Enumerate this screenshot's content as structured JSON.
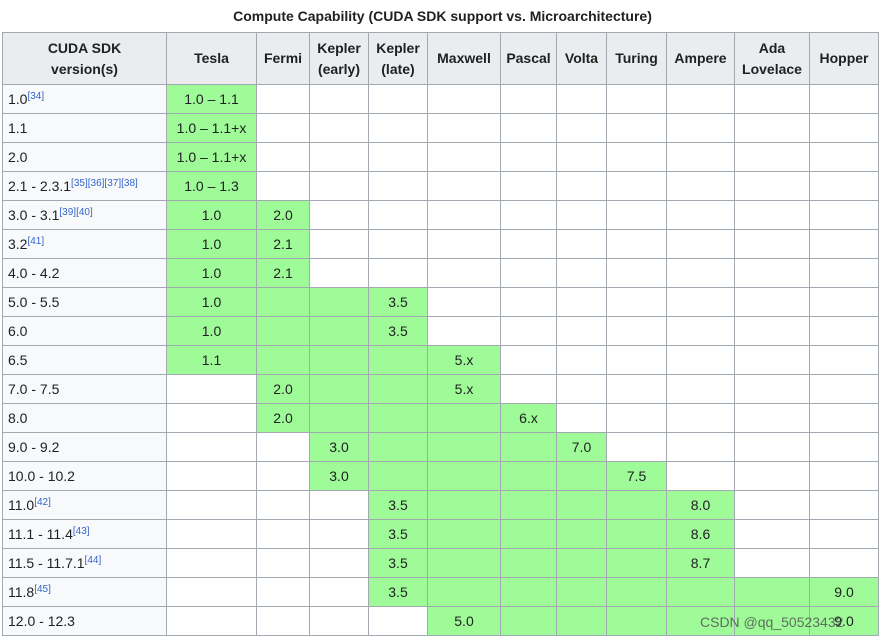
{
  "caption": "Compute Capability (CUDA SDK support vs. Microarchitecture)",
  "headers": [
    [
      "CUDA SDK",
      "version(s)"
    ],
    [
      "Tesla"
    ],
    [
      "Fermi"
    ],
    [
      "Kepler",
      "(early)"
    ],
    [
      "Kepler",
      "(late)"
    ],
    [
      "Maxwell"
    ],
    [
      "Pascal"
    ],
    [
      "Volta"
    ],
    [
      "Turing"
    ],
    [
      "Ampere"
    ],
    [
      "Ada",
      "Lovelace"
    ],
    [
      "Hopper"
    ]
  ],
  "rows": [
    {
      "version": "1.0",
      "refs": [
        "[34]"
      ],
      "cells": [
        {
          "text": "1.0 – 1.1",
          "green": true
        },
        {
          "text": "",
          "green": false
        },
        {
          "text": "",
          "green": false
        },
        {
          "text": "",
          "green": false
        },
        {
          "text": "",
          "green": false
        },
        {
          "text": "",
          "green": false
        },
        {
          "text": "",
          "green": false
        },
        {
          "text": "",
          "green": false
        },
        {
          "text": "",
          "green": false
        },
        {
          "text": "",
          "green": false
        },
        {
          "text": "",
          "green": false
        }
      ]
    },
    {
      "version": "1.1",
      "refs": [],
      "cells": [
        {
          "text": "1.0 – 1.1+x",
          "green": true
        },
        {
          "text": "",
          "green": false
        },
        {
          "text": "",
          "green": false
        },
        {
          "text": "",
          "green": false
        },
        {
          "text": "",
          "green": false
        },
        {
          "text": "",
          "green": false
        },
        {
          "text": "",
          "green": false
        },
        {
          "text": "",
          "green": false
        },
        {
          "text": "",
          "green": false
        },
        {
          "text": "",
          "green": false
        },
        {
          "text": "",
          "green": false
        }
      ]
    },
    {
      "version": "2.0",
      "refs": [],
      "cells": [
        {
          "text": "1.0 – 1.1+x",
          "green": true
        },
        {
          "text": "",
          "green": false
        },
        {
          "text": "",
          "green": false
        },
        {
          "text": "",
          "green": false
        },
        {
          "text": "",
          "green": false
        },
        {
          "text": "",
          "green": false
        },
        {
          "text": "",
          "green": false
        },
        {
          "text": "",
          "green": false
        },
        {
          "text": "",
          "green": false
        },
        {
          "text": "",
          "green": false
        },
        {
          "text": "",
          "green": false
        }
      ]
    },
    {
      "version": "2.1 - 2.3.1",
      "refs": [
        "[35]",
        "[36]",
        "[37]",
        "[38]"
      ],
      "cells": [
        {
          "text": "1.0 – 1.3",
          "green": true
        },
        {
          "text": "",
          "green": false
        },
        {
          "text": "",
          "green": false
        },
        {
          "text": "",
          "green": false
        },
        {
          "text": "",
          "green": false
        },
        {
          "text": "",
          "green": false
        },
        {
          "text": "",
          "green": false
        },
        {
          "text": "",
          "green": false
        },
        {
          "text": "",
          "green": false
        },
        {
          "text": "",
          "green": false
        },
        {
          "text": "",
          "green": false
        }
      ]
    },
    {
      "version": "3.0 - 3.1",
      "refs": [
        "[39]",
        "[40]"
      ],
      "cells": [
        {
          "text": "1.0",
          "green": true
        },
        {
          "text": "2.0",
          "green": true
        },
        {
          "text": "",
          "green": false
        },
        {
          "text": "",
          "green": false
        },
        {
          "text": "",
          "green": false
        },
        {
          "text": "",
          "green": false
        },
        {
          "text": "",
          "green": false
        },
        {
          "text": "",
          "green": false
        },
        {
          "text": "",
          "green": false
        },
        {
          "text": "",
          "green": false
        },
        {
          "text": "",
          "green": false
        }
      ]
    },
    {
      "version": "3.2",
      "refs": [
        "[41]"
      ],
      "cells": [
        {
          "text": "1.0",
          "green": true
        },
        {
          "text": "2.1",
          "green": true
        },
        {
          "text": "",
          "green": false
        },
        {
          "text": "",
          "green": false
        },
        {
          "text": "",
          "green": false
        },
        {
          "text": "",
          "green": false
        },
        {
          "text": "",
          "green": false
        },
        {
          "text": "",
          "green": false
        },
        {
          "text": "",
          "green": false
        },
        {
          "text": "",
          "green": false
        },
        {
          "text": "",
          "green": false
        }
      ]
    },
    {
      "version": "4.0 - 4.2",
      "refs": [],
      "cells": [
        {
          "text": "1.0",
          "green": true
        },
        {
          "text": "2.1",
          "green": true
        },
        {
          "text": "",
          "green": false
        },
        {
          "text": "",
          "green": false
        },
        {
          "text": "",
          "green": false
        },
        {
          "text": "",
          "green": false
        },
        {
          "text": "",
          "green": false
        },
        {
          "text": "",
          "green": false
        },
        {
          "text": "",
          "green": false
        },
        {
          "text": "",
          "green": false
        },
        {
          "text": "",
          "green": false
        }
      ]
    },
    {
      "version": "5.0 - 5.5",
      "refs": [],
      "cells": [
        {
          "text": "1.0",
          "green": true
        },
        {
          "text": "",
          "green": true
        },
        {
          "text": "",
          "green": true
        },
        {
          "text": "3.5",
          "green": true
        },
        {
          "text": "",
          "green": false
        },
        {
          "text": "",
          "green": false
        },
        {
          "text": "",
          "green": false
        },
        {
          "text": "",
          "green": false
        },
        {
          "text": "",
          "green": false
        },
        {
          "text": "",
          "green": false
        },
        {
          "text": "",
          "green": false
        }
      ]
    },
    {
      "version": "6.0",
      "refs": [],
      "cells": [
        {
          "text": "1.0",
          "green": true
        },
        {
          "text": "",
          "green": true
        },
        {
          "text": "",
          "green": true
        },
        {
          "text": "3.5",
          "green": true
        },
        {
          "text": "",
          "green": false
        },
        {
          "text": "",
          "green": false
        },
        {
          "text": "",
          "green": false
        },
        {
          "text": "",
          "green": false
        },
        {
          "text": "",
          "green": false
        },
        {
          "text": "",
          "green": false
        },
        {
          "text": "",
          "green": false
        }
      ]
    },
    {
      "version": "6.5",
      "refs": [],
      "cells": [
        {
          "text": "1.1",
          "green": true
        },
        {
          "text": "",
          "green": true
        },
        {
          "text": "",
          "green": true
        },
        {
          "text": "",
          "green": true
        },
        {
          "text": "5.x",
          "green": true
        },
        {
          "text": "",
          "green": false
        },
        {
          "text": "",
          "green": false
        },
        {
          "text": "",
          "green": false
        },
        {
          "text": "",
          "green": false
        },
        {
          "text": "",
          "green": false
        },
        {
          "text": "",
          "green": false
        }
      ]
    },
    {
      "version": "7.0 - 7.5",
      "refs": [],
      "cells": [
        {
          "text": "",
          "green": false
        },
        {
          "text": "2.0",
          "green": true
        },
        {
          "text": "",
          "green": true
        },
        {
          "text": "",
          "green": true
        },
        {
          "text": "5.x",
          "green": true
        },
        {
          "text": "",
          "green": false
        },
        {
          "text": "",
          "green": false
        },
        {
          "text": "",
          "green": false
        },
        {
          "text": "",
          "green": false
        },
        {
          "text": "",
          "green": false
        },
        {
          "text": "",
          "green": false
        }
      ]
    },
    {
      "version": "8.0",
      "refs": [],
      "cells": [
        {
          "text": "",
          "green": false
        },
        {
          "text": "2.0",
          "green": true
        },
        {
          "text": "",
          "green": true
        },
        {
          "text": "",
          "green": true
        },
        {
          "text": "",
          "green": true
        },
        {
          "text": "6.x",
          "green": true
        },
        {
          "text": "",
          "green": false
        },
        {
          "text": "",
          "green": false
        },
        {
          "text": "",
          "green": false
        },
        {
          "text": "",
          "green": false
        },
        {
          "text": "",
          "green": false
        }
      ]
    },
    {
      "version": "9.0 - 9.2",
      "refs": [],
      "cells": [
        {
          "text": "",
          "green": false
        },
        {
          "text": "",
          "green": false
        },
        {
          "text": "3.0",
          "green": true
        },
        {
          "text": "",
          "green": true
        },
        {
          "text": "",
          "green": true
        },
        {
          "text": "",
          "green": true
        },
        {
          "text": "7.0",
          "green": true
        },
        {
          "text": "",
          "green": false
        },
        {
          "text": "",
          "green": false
        },
        {
          "text": "",
          "green": false
        },
        {
          "text": "",
          "green": false
        }
      ]
    },
    {
      "version": "10.0 - 10.2",
      "refs": [],
      "cells": [
        {
          "text": "",
          "green": false
        },
        {
          "text": "",
          "green": false
        },
        {
          "text": "3.0",
          "green": true
        },
        {
          "text": "",
          "green": true
        },
        {
          "text": "",
          "green": true
        },
        {
          "text": "",
          "green": true
        },
        {
          "text": "",
          "green": true
        },
        {
          "text": "7.5",
          "green": true
        },
        {
          "text": "",
          "green": false
        },
        {
          "text": "",
          "green": false
        },
        {
          "text": "",
          "green": false
        }
      ]
    },
    {
      "version": "11.0",
      "refs": [
        "[42]"
      ],
      "cells": [
        {
          "text": "",
          "green": false
        },
        {
          "text": "",
          "green": false
        },
        {
          "text": "",
          "green": false
        },
        {
          "text": "3.5",
          "green": true
        },
        {
          "text": "",
          "green": true
        },
        {
          "text": "",
          "green": true
        },
        {
          "text": "",
          "green": true
        },
        {
          "text": "",
          "green": true
        },
        {
          "text": "8.0",
          "green": true
        },
        {
          "text": "",
          "green": false
        },
        {
          "text": "",
          "green": false
        }
      ]
    },
    {
      "version": "11.1 - 11.4",
      "refs": [
        "[43]"
      ],
      "cells": [
        {
          "text": "",
          "green": false
        },
        {
          "text": "",
          "green": false
        },
        {
          "text": "",
          "green": false
        },
        {
          "text": "3.5",
          "green": true
        },
        {
          "text": "",
          "green": true
        },
        {
          "text": "",
          "green": true
        },
        {
          "text": "",
          "green": true
        },
        {
          "text": "",
          "green": true
        },
        {
          "text": "8.6",
          "green": true
        },
        {
          "text": "",
          "green": false
        },
        {
          "text": "",
          "green": false
        }
      ]
    },
    {
      "version": "11.5 - 11.7.1",
      "refs": [
        "[44]"
      ],
      "cells": [
        {
          "text": "",
          "green": false
        },
        {
          "text": "",
          "green": false
        },
        {
          "text": "",
          "green": false
        },
        {
          "text": "3.5",
          "green": true
        },
        {
          "text": "",
          "green": true
        },
        {
          "text": "",
          "green": true
        },
        {
          "text": "",
          "green": true
        },
        {
          "text": "",
          "green": true
        },
        {
          "text": "8.7",
          "green": true
        },
        {
          "text": "",
          "green": false
        },
        {
          "text": "",
          "green": false
        }
      ]
    },
    {
      "version": "11.8",
      "refs": [
        "[45]"
      ],
      "cells": [
        {
          "text": "",
          "green": false
        },
        {
          "text": "",
          "green": false
        },
        {
          "text": "",
          "green": false
        },
        {
          "text": "3.5",
          "green": true
        },
        {
          "text": "",
          "green": true
        },
        {
          "text": "",
          "green": true
        },
        {
          "text": "",
          "green": true
        },
        {
          "text": "",
          "green": true
        },
        {
          "text": "",
          "green": true
        },
        {
          "text": "",
          "green": true
        },
        {
          "text": "9.0",
          "green": true
        }
      ]
    },
    {
      "version": "12.0 - 12.3",
      "refs": [],
      "cells": [
        {
          "text": "",
          "green": false
        },
        {
          "text": "",
          "green": false
        },
        {
          "text": "",
          "green": false
        },
        {
          "text": "",
          "green": false
        },
        {
          "text": "5.0",
          "green": true
        },
        {
          "text": "",
          "green": true
        },
        {
          "text": "",
          "green": true
        },
        {
          "text": "",
          "green": true
        },
        {
          "text": "",
          "green": true
        },
        {
          "text": "",
          "green": true
        },
        {
          "text": "9.0",
          "green": true
        }
      ]
    }
  ],
  "watermark": "CSDN @qq_50523432",
  "colors": {
    "supported": "#9ffb98",
    "header_bg": "#eaecf0",
    "border": "#a2a9b1",
    "link": "#3366cc"
  }
}
